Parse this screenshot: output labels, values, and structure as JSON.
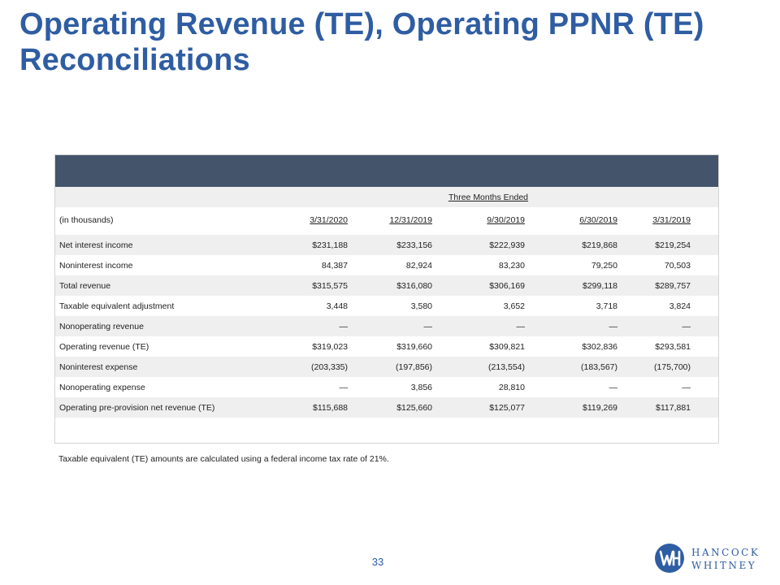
{
  "title": "Operating Revenue (TE), Operating PPNR (TE) Reconciliations",
  "table": {
    "period_label": "Three Months Ended",
    "unit_label": "(in thousands)",
    "columns": [
      "3/31/2020",
      "12/31/2019",
      "9/30/2019",
      "6/30/2019",
      "3/31/2019"
    ],
    "rows": [
      {
        "label": "Net interest income",
        "values": [
          "$231,188",
          "$233,156",
          "$222,939",
          "$219,868",
          "$219,254"
        ]
      },
      {
        "label": "Noninterest income",
        "values": [
          "84,387",
          "82,924",
          "83,230",
          "79,250",
          "70,503"
        ]
      },
      {
        "label": "Total revenue",
        "values": [
          "$315,575",
          "$316,080",
          "$306,169",
          "$299,118",
          "$289,757"
        ]
      },
      {
        "label": "Taxable equivalent adjustment",
        "values": [
          "3,448",
          "3,580",
          "3,652",
          "3,718",
          "3,824"
        ]
      },
      {
        "label": "Nonoperating revenue",
        "values": [
          "—",
          "—",
          "—",
          "—",
          "—"
        ]
      },
      {
        "label": "Operating revenue (TE)",
        "values": [
          "$319,023",
          "$319,660",
          "$309,821",
          "$302,836",
          "$293,581"
        ]
      },
      {
        "label": "Noninterest expense",
        "values": [
          "(203,335)",
          "(197,856)",
          "(213,554)",
          "(183,567)",
          "(175,700)"
        ]
      },
      {
        "label": "Nonoperating expense",
        "values": [
          "—",
          "3,856",
          "28,810",
          "—",
          "—"
        ]
      },
      {
        "label": "Operating pre-provision net revenue (TE)",
        "values": [
          "$115,688",
          "$125,660",
          "$125,077",
          "$119,269",
          "$117,881"
        ]
      }
    ]
  },
  "footnote": "Taxable equivalent (TE) amounts are calculated using a federal income tax rate of 21%.",
  "page_number": "33",
  "logo": {
    "line1": "HANCOCK",
    "line2": "WHITNEY",
    "brand_color": "#2f5da3"
  },
  "colors": {
    "title": "#2f5da3",
    "header_band": "#43546b",
    "row_shade": "#efefef"
  }
}
